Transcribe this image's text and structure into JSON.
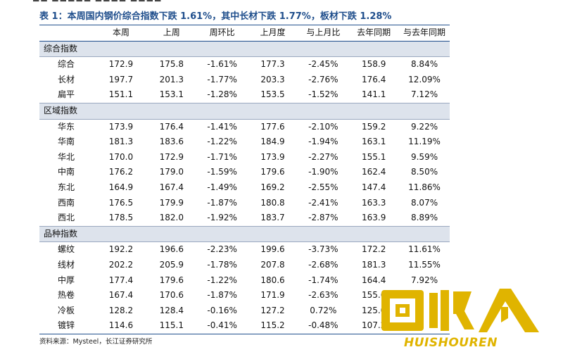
{
  "caption": "表 1：本周国内钢价综合指数下跌 1.61%，其中长材下跌 1.77%，板材下跌 1.28%",
  "table": {
    "columns": [
      "",
      "本周",
      "上周",
      "周环比",
      "上月度",
      "与上月比",
      "去年同期",
      "与去年同期"
    ],
    "sections": [
      {
        "title": "综合指数",
        "rows": [
          [
            "综合",
            "172.9",
            "175.8",
            "-1.61%",
            "177.3",
            "-2.45%",
            "158.9",
            "8.84%"
          ],
          [
            "长材",
            "197.7",
            "201.3",
            "-1.77%",
            "203.3",
            "-2.76%",
            "176.4",
            "12.09%"
          ],
          [
            "扁平",
            "151.1",
            "153.1",
            "-1.28%",
            "153.5",
            "-1.52%",
            "141.1",
            "7.12%"
          ]
        ]
      },
      {
        "title": "区域指数",
        "rows": [
          [
            "华东",
            "173.9",
            "176.4",
            "-1.41%",
            "177.6",
            "-2.10%",
            "159.2",
            "9.22%"
          ],
          [
            "华南",
            "181.3",
            "183.6",
            "-1.22%",
            "184.9",
            "-1.94%",
            "163.1",
            "11.19%"
          ],
          [
            "华北",
            "170.0",
            "172.9",
            "-1.71%",
            "173.9",
            "-2.27%",
            "155.1",
            "9.59%"
          ],
          [
            "中南",
            "176.2",
            "179.0",
            "-1.59%",
            "179.6",
            "-1.90%",
            "162.4",
            "8.50%"
          ],
          [
            "东北",
            "164.9",
            "167.4",
            "-1.49%",
            "169.2",
            "-2.55%",
            "147.4",
            "11.86%"
          ],
          [
            "西南",
            "176.5",
            "179.9",
            "-1.87%",
            "180.8",
            "-2.41%",
            "163.3",
            "8.07%"
          ],
          [
            "西北",
            "178.5",
            "182.0",
            "-1.92%",
            "183.7",
            "-2.87%",
            "163.9",
            "8.89%"
          ]
        ]
      },
      {
        "title": "品种指数",
        "rows": [
          [
            "螺纹",
            "192.2",
            "196.6",
            "-2.23%",
            "199.6",
            "-3.73%",
            "172.2",
            "11.61%"
          ],
          [
            "线材",
            "202.2",
            "205.9",
            "-1.78%",
            "207.8",
            "-2.68%",
            "181.3",
            "11.55%"
          ],
          [
            "中厚",
            "177.4",
            "179.6",
            "-1.22%",
            "180.6",
            "-1.74%",
            "164.4",
            "7.92%"
          ],
          [
            "热卷",
            "167.4",
            "170.6",
            "-1.87%",
            "171.9",
            "-2.63%",
            "155.6",
            ""
          ],
          [
            "冷板",
            "128.2",
            "128.4",
            "-0.16%",
            "127.2",
            "0.72%",
            "125.0",
            ""
          ],
          [
            "镀锌",
            "114.6",
            "115.1",
            "-0.41%",
            "115.2",
            "-0.48%",
            "107.2",
            ""
          ]
        ]
      }
    ]
  },
  "source": "资料来源：Mysteel，长江证券研究所",
  "watermark": {
    "text": "HUISHOUREN",
    "color": "#e0b400"
  }
}
